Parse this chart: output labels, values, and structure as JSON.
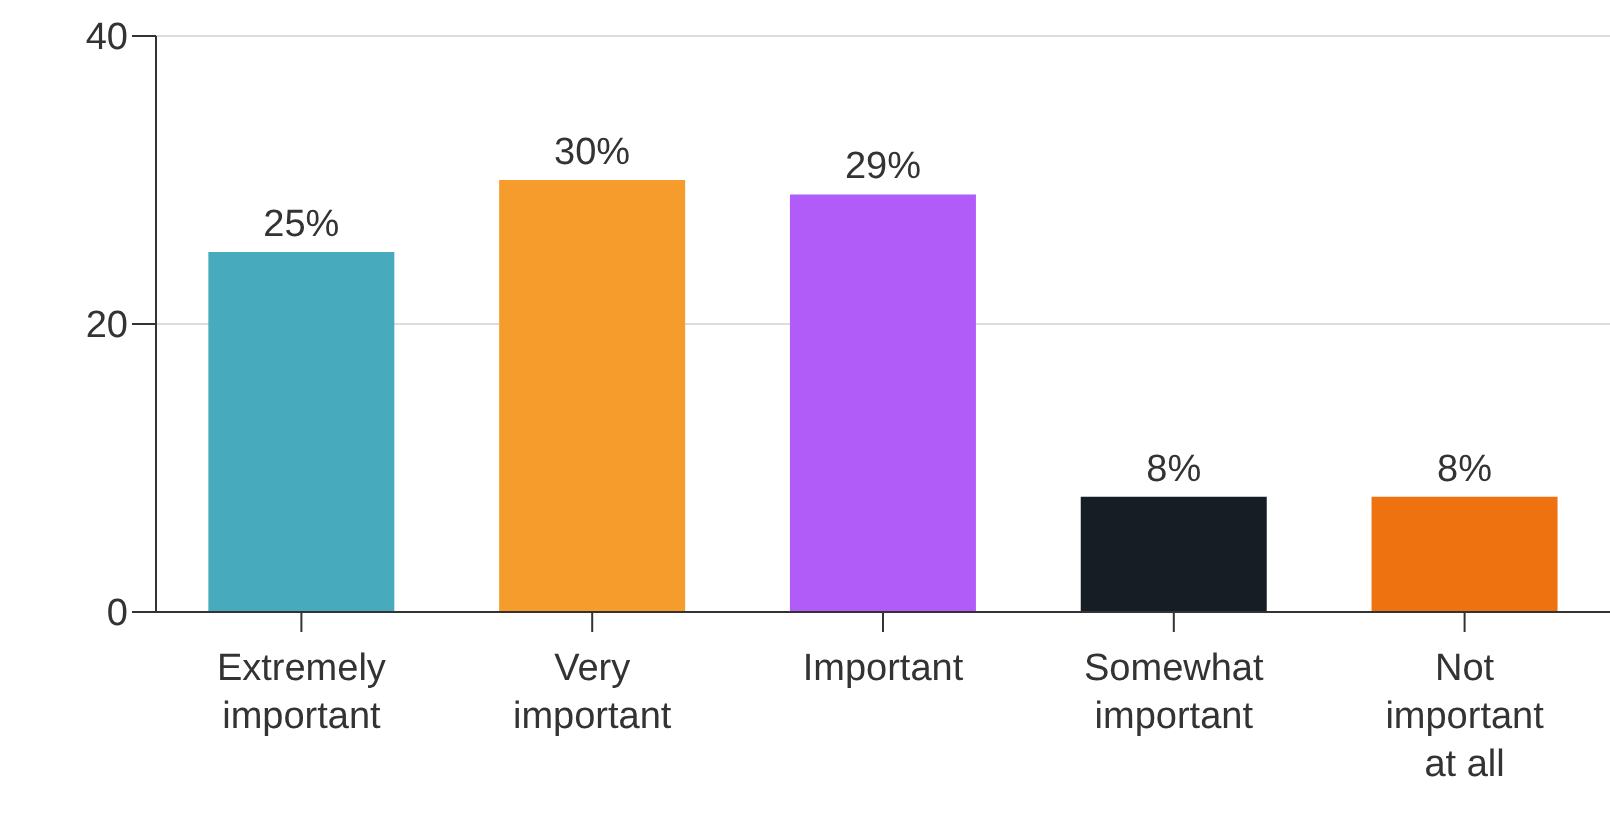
{
  "chart_data": {
    "type": "bar",
    "categories": [
      "Extremely important",
      "Very important",
      "Important",
      "Somewhat important",
      "Not important at all"
    ],
    "values": [
      25,
      30,
      29,
      8,
      8
    ],
    "colors": [
      "#48abbd",
      "#f59c2d",
      "#b15cf8",
      "#161d25",
      "#ef7210"
    ],
    "value_labels": [
      "25%",
      "30%",
      "29%",
      "8%",
      "8%"
    ],
    "ylim": [
      0,
      40
    ],
    "yticks": [
      0,
      20,
      40
    ],
    "grid": "y"
  }
}
